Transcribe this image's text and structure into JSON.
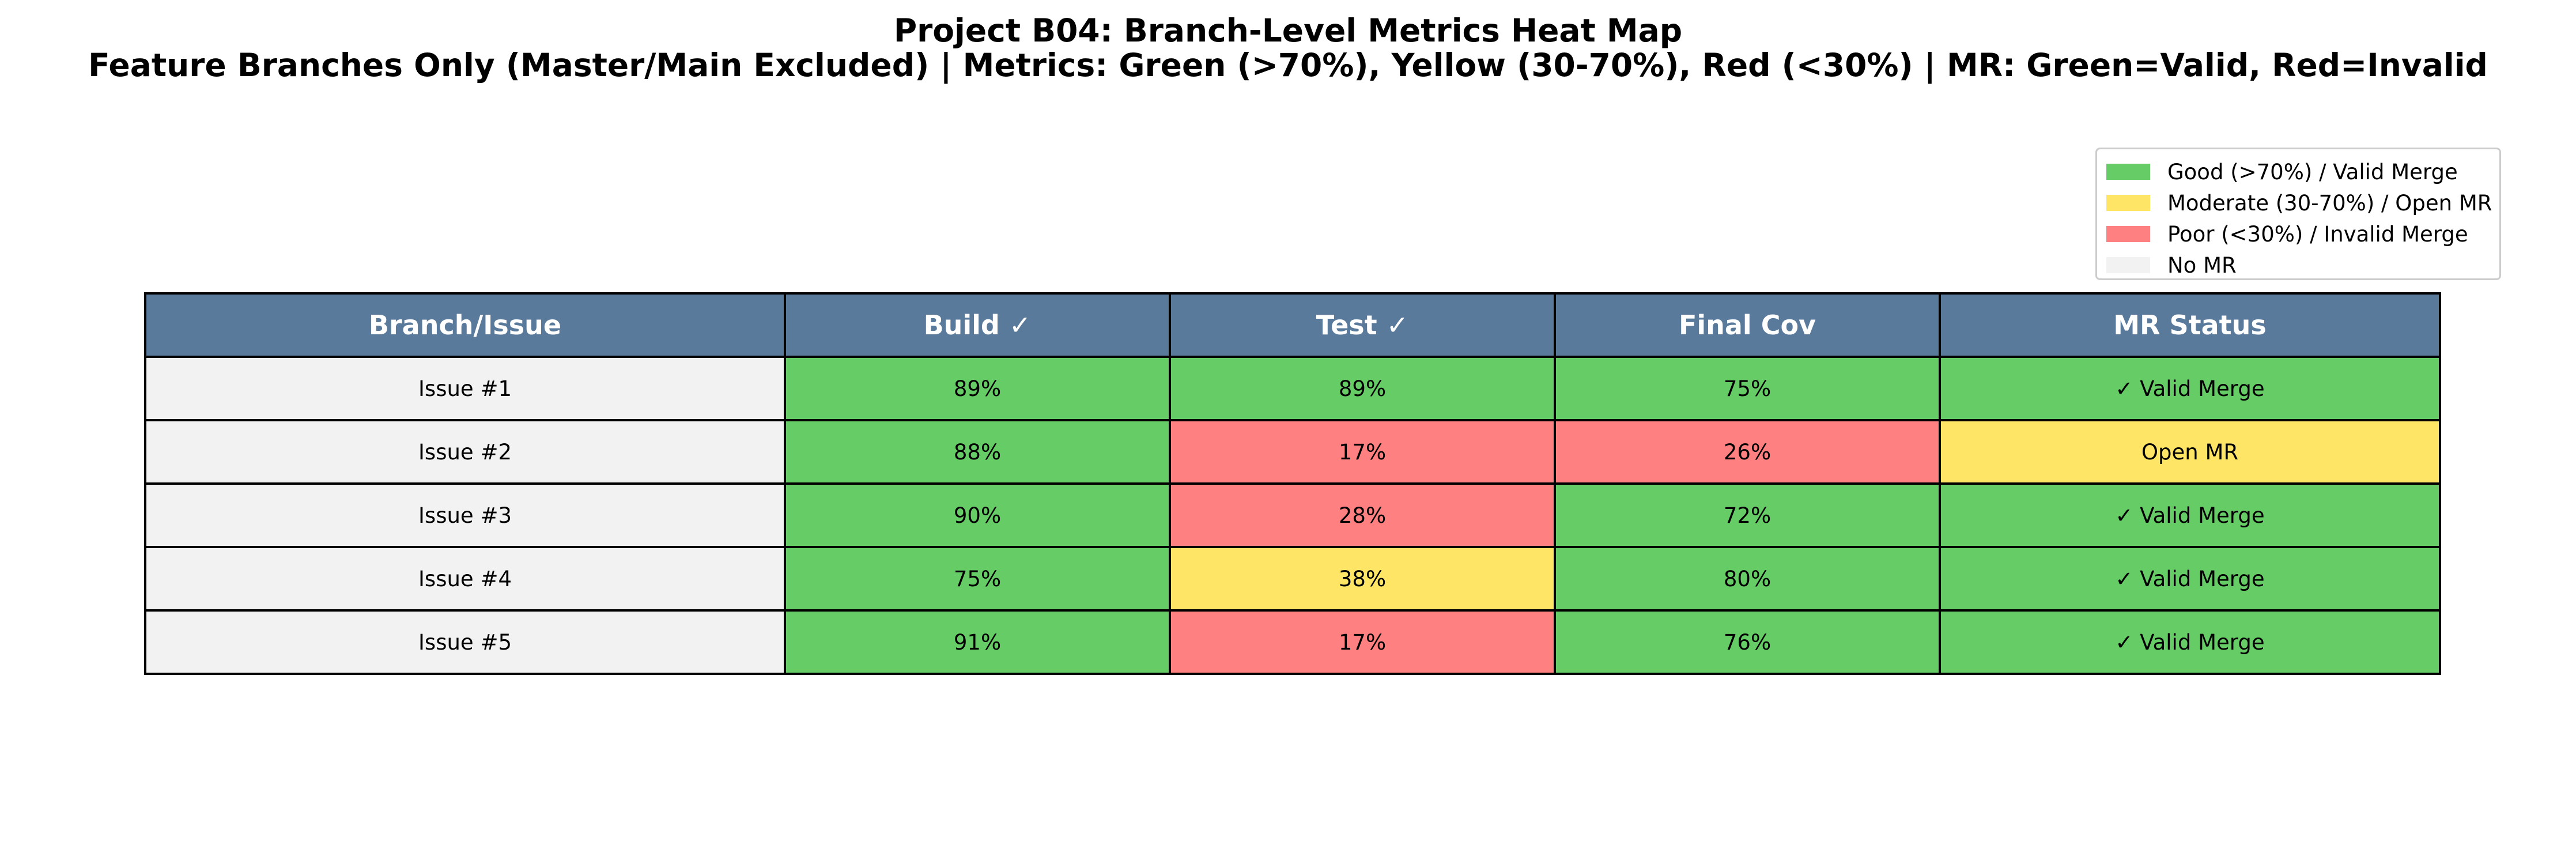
{
  "chart_data": {
    "type": "table",
    "title": "Project B04: Branch-Level Metrics Heat Map",
    "subtitle": "Feature Branches Only (Master/Main Excluded) | Metrics: Green (>70%), Yellow (30-70%), Red (<30%) | MR: Green=Valid, Red=Invalid",
    "header_color": "#5a7a9c",
    "columns": [
      "Branch/Issue",
      "Build ✓",
      "Test ✓",
      "Final Cov",
      "MR Status"
    ],
    "rows": [
      {
        "cells": [
          "Issue #1",
          "89%",
          "89%",
          "75%",
          "✓ Valid Merge"
        ],
        "levels": [
          "none",
          "good",
          "good",
          "good",
          "good"
        ]
      },
      {
        "cells": [
          "Issue #2",
          "88%",
          "17%",
          "26%",
          "Open MR"
        ],
        "levels": [
          "none",
          "good",
          "poor",
          "poor",
          "moderate"
        ]
      },
      {
        "cells": [
          "Issue #3",
          "90%",
          "28%",
          "72%",
          "✓ Valid Merge"
        ],
        "levels": [
          "none",
          "good",
          "poor",
          "good",
          "good"
        ]
      },
      {
        "cells": [
          "Issue #4",
          "75%",
          "38%",
          "80%",
          "✓ Valid Merge"
        ],
        "levels": [
          "none",
          "good",
          "moderate",
          "good",
          "good"
        ]
      },
      {
        "cells": [
          "Issue #5",
          "91%",
          "17%",
          "76%",
          "✓ Valid Merge"
        ],
        "levels": [
          "none",
          "good",
          "poor",
          "good",
          "good"
        ]
      }
    ],
    "level_colors": {
      "good": "#66cc66",
      "moderate": "#ffe566",
      "poor": "#ff8080",
      "none": "#f2f2f2"
    },
    "legend": {
      "placement": "top-right",
      "entries": [
        {
          "label": "Good (>70%) / Valid Merge",
          "level": "good"
        },
        {
          "label": "Moderate (30-70%) / Open MR",
          "level": "moderate"
        },
        {
          "label": "Poor (<30%) / Invalid Merge",
          "level": "poor"
        },
        {
          "label": "No MR",
          "level": "none"
        }
      ]
    }
  }
}
